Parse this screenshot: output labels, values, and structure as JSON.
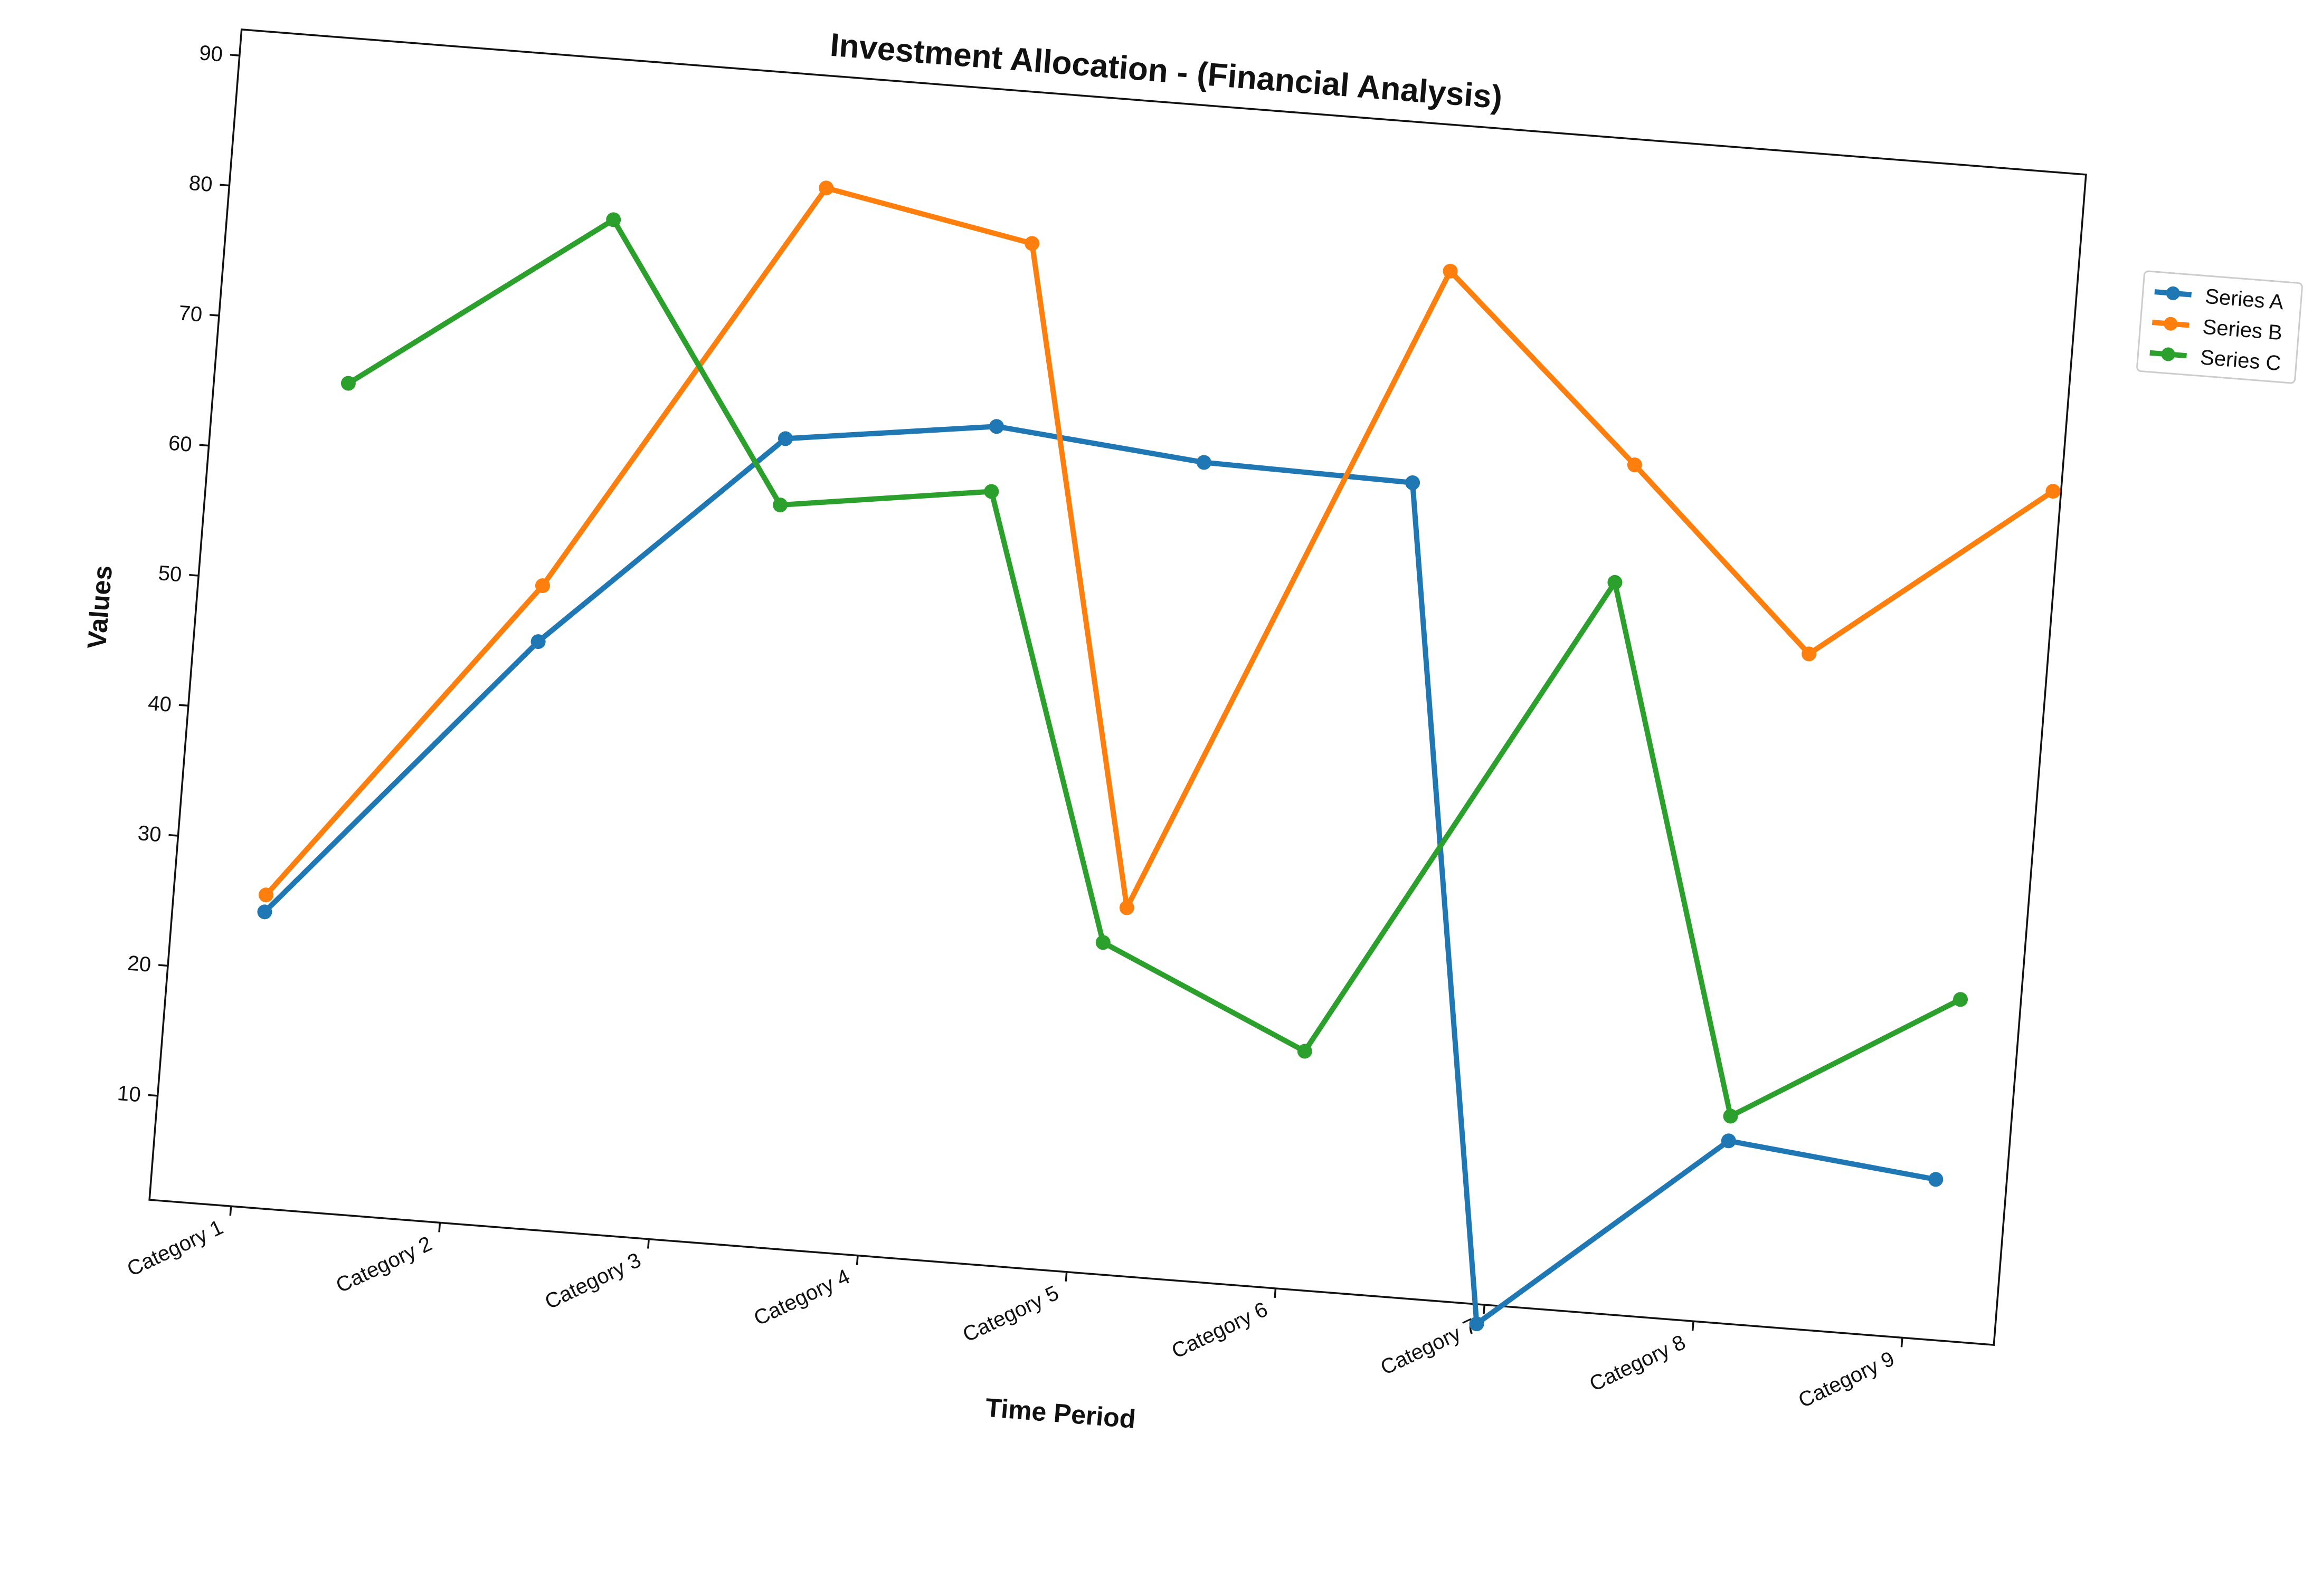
{
  "chart_data": {
    "type": "line",
    "title": "Investment Allocation - (Financial Analysis)",
    "xlabel": "Time Period",
    "ylabel": "Values",
    "categories": [
      "Category 1",
      "Category 2",
      "Category 3",
      "Category 4",
      "Category 5",
      "Category 6",
      "Category 7",
      "Category 8",
      "Category 9"
    ],
    "yticks": [
      10,
      20,
      30,
      40,
      50,
      60,
      70,
      80,
      90
    ],
    "ylim": [
      2,
      92
    ],
    "grid": false,
    "legend_position": "upper right, outside plot",
    "series": [
      {
        "name": "Series A",
        "color": "#1f77b4",
        "x": [
          0.05,
          1.25,
          2.35,
          3.35,
          4.35,
          5.35,
          5.97,
          7.1,
          8.1
        ],
        "values": [
          24.7,
          47.0,
          64.0,
          66.2,
          64.7,
          64.4,
          0.5,
          16.0,
          14.3
        ]
      },
      {
        "name": "Series B",
        "color": "#ff7f0e",
        "x": [
          0.05,
          1.25,
          2.45,
          3.45,
          4.15,
          5.45,
          6.4,
          7.3,
          8.4
        ],
        "values": [
          26.0,
          51.3,
          83.4,
          80.4,
          30.2,
          80.8,
          67.1,
          53.7,
          67.6
        ]
      },
      {
        "name": "Series C",
        "color": "#2ca02c",
        "x": [
          0.25,
          1.45,
          2.35,
          3.35,
          4.05,
          5.05,
          6.35,
          7.1,
          8.15
        ],
        "values": [
          65.6,
          79.7,
          58.9,
          61.2,
          27.4,
          20.3,
          58.0,
          17.9,
          28.2
        ]
      }
    ]
  }
}
